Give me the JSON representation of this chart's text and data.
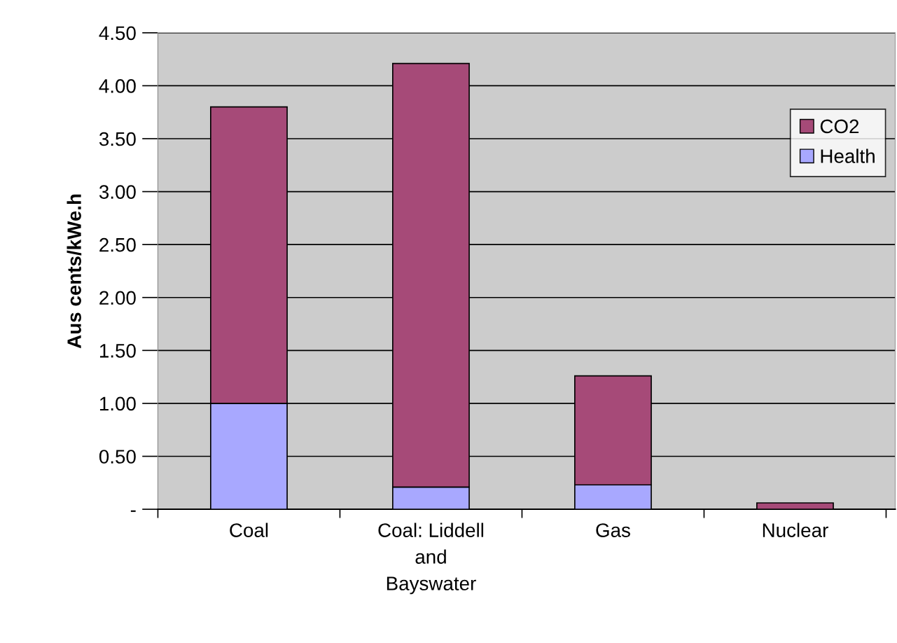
{
  "chart_data": {
    "type": "bar",
    "stacked": true,
    "ylabel": "Aus cents/kWe.h",
    "categories": [
      "Coal",
      "Coal: Liddell\nand\nBayswater",
      "Gas",
      "Nuclear"
    ],
    "series": [
      {
        "name": "Health",
        "color": "#a8a8ff",
        "values": [
          1.0,
          0.21,
          0.23,
          0.0
        ]
      },
      {
        "name": "CO2",
        "color": "#a64a78",
        "values": [
          2.8,
          4.0,
          1.03,
          0.06
        ]
      }
    ],
    "ylim": [
      0,
      4.5
    ],
    "yticks": [
      {
        "value": 0,
        "label": "-"
      },
      {
        "value": 0.5,
        "label": "0.50"
      },
      {
        "value": 1.0,
        "label": "1.00"
      },
      {
        "value": 1.5,
        "label": "1.50"
      },
      {
        "value": 2.0,
        "label": "2.00"
      },
      {
        "value": 2.5,
        "label": "2.50"
      },
      {
        "value": 3.0,
        "label": "3.00"
      },
      {
        "value": 3.5,
        "label": "3.50"
      },
      {
        "value": 4.0,
        "label": "4.00"
      },
      {
        "value": 4.5,
        "label": "4.50"
      }
    ],
    "grid": "y",
    "legend": "top right"
  }
}
